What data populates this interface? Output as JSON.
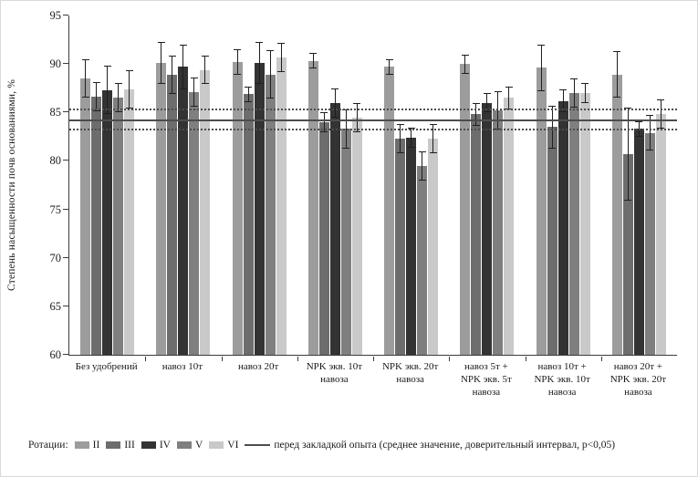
{
  "chart_data": {
    "type": "bar",
    "title": "",
    "ylabel": "Степень насыщенности почв основаниями, %",
    "xlabel": "",
    "ylim": [
      60,
      95
    ],
    "yticks": [
      60,
      65,
      70,
      75,
      80,
      85,
      90,
      95
    ],
    "grid": false,
    "legend_position": "bottom",
    "legend_title": "Ротации:",
    "categories": [
      "Без удобрений",
      "навоз 10т",
      "навоз 20т",
      "NPK экв. 10т навоза",
      "NPK экв. 20т навоза",
      "навоз 5т + NPK экв. 5т навоза",
      "навоз 10т + NPK экв. 10т навоза",
      "навоз 20т + NPK экв. 20т навоза"
    ],
    "series": [
      {
        "name": "II",
        "color": "#9c9c9c",
        "values": [
          88.5,
          90.1,
          90.2,
          90.3,
          89.7,
          90.0,
          89.6,
          88.9
        ],
        "errors": [
          2.0,
          2.2,
          1.3,
          0.8,
          0.8,
          1.0,
          2.4,
          2.4
        ]
      },
      {
        "name": "III",
        "color": "#6d6d6d",
        "values": [
          86.6,
          88.9,
          86.9,
          84.0,
          82.3,
          84.8,
          83.5,
          80.7
        ],
        "errors": [
          1.5,
          2.0,
          0.8,
          1.0,
          1.5,
          1.2,
          2.2,
          4.8
        ]
      },
      {
        "name": "IV",
        "color": "#333333",
        "values": [
          87.3,
          89.7,
          90.1,
          86.0,
          82.4,
          86.0,
          86.2,
          83.3
        ],
        "errors": [
          2.5,
          2.3,
          2.2,
          1.5,
          1.0,
          1.0,
          1.2,
          0.8
        ]
      },
      {
        "name": "V",
        "color": "#7f7f7f",
        "values": [
          86.5,
          87.1,
          88.9,
          83.3,
          79.5,
          85.2,
          87.0,
          82.9
        ],
        "errors": [
          1.5,
          1.5,
          2.5,
          2.0,
          1.5,
          2.0,
          1.5,
          1.8
        ]
      },
      {
        "name": "VI",
        "color": "#c9c9c9",
        "values": [
          87.4,
          89.4,
          90.7,
          84.5,
          82.3,
          86.5,
          87.0,
          84.8
        ],
        "errors": [
          2.0,
          1.5,
          1.5,
          1.5,
          1.5,
          1.2,
          1.0,
          1.5
        ]
      }
    ],
    "reference": {
      "mean": 84.2,
      "upper": 85.3,
      "lower": 83.2,
      "color": "#4d4d4d",
      "label": "перед закладкой опыта (среднее значение, доверительный интервал, p<0,05)"
    }
  }
}
